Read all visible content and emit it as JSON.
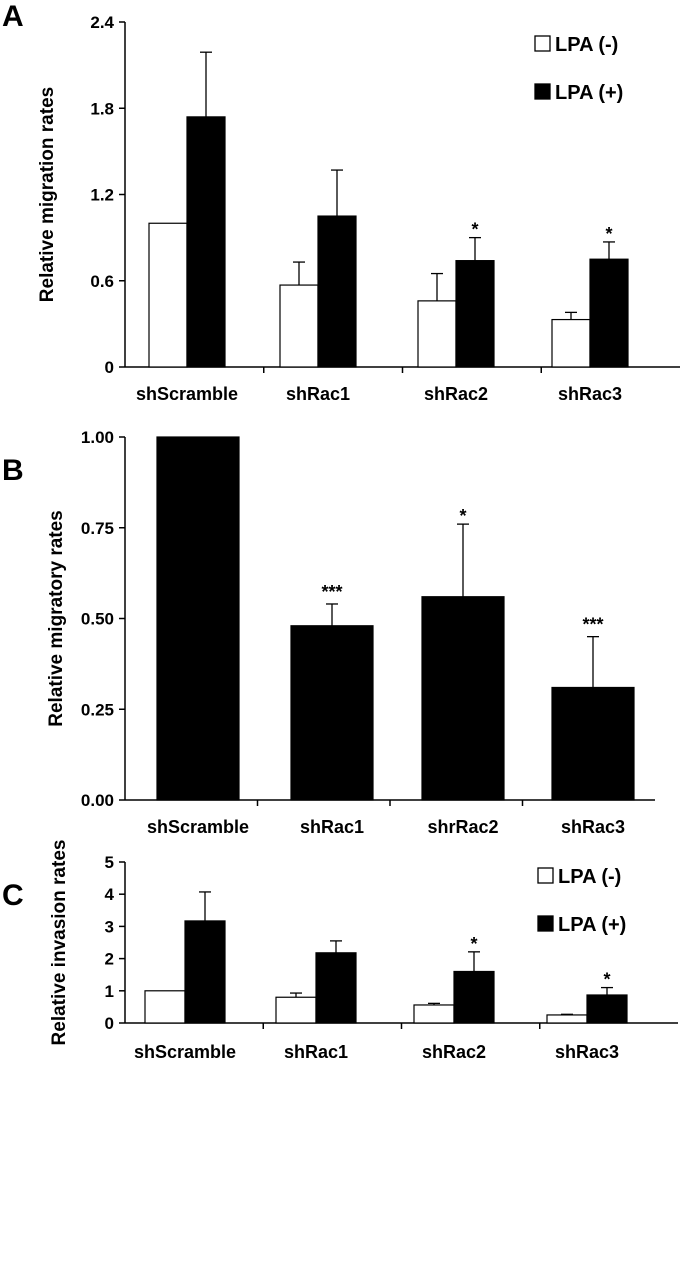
{
  "colors": {
    "lpa_minus_fill": "#ffffff",
    "lpa_plus_fill": "#000000",
    "axis": "#000000"
  },
  "chart_data": [
    {
      "panel_label": "A",
      "type": "bar",
      "ylabel": "Relative migration rates",
      "ylim": [
        0,
        2.4
      ],
      "yticks": [
        "0",
        "0.6",
        "1.2",
        "1.8",
        "2.4"
      ],
      "categories": [
        "shScramble",
        "shRac1",
        "shRac2",
        "shRac3"
      ],
      "legend": {
        "position": "top-right",
        "entries": [
          "LPA (-)",
          "LPA (+)"
        ]
      },
      "series": [
        {
          "name": "LPA (-)",
          "values": [
            1.0,
            0.57,
            0.46,
            0.33
          ],
          "errors": [
            0.0,
            0.16,
            0.19,
            0.05
          ],
          "significance": [
            "",
            "",
            "",
            ""
          ]
        },
        {
          "name": "LPA (+)",
          "values": [
            1.74,
            1.05,
            0.74,
            0.75
          ],
          "errors": [
            0.45,
            0.32,
            0.16,
            0.12
          ],
          "significance": [
            "",
            "",
            "*",
            "*"
          ]
        }
      ]
    },
    {
      "panel_label": "B",
      "type": "bar",
      "ylabel": "Relative migratory rates",
      "ylim": [
        0,
        1.0
      ],
      "yticks": [
        "0.00",
        "0.25",
        "0.50",
        "0.75",
        "1.00"
      ],
      "categories": [
        "shScramble",
        "shRac1",
        "shrRac2",
        "shRac3"
      ],
      "series": [
        {
          "values": [
            1.0,
            0.48,
            0.56,
            0.31
          ],
          "errors": [
            0.0,
            0.06,
            0.2,
            0.14
          ],
          "significance": [
            "",
            "***",
            "*",
            "***"
          ]
        }
      ]
    },
    {
      "panel_label": "C",
      "type": "bar",
      "ylabel": "Relative invasion rates",
      "ylim": [
        0,
        5
      ],
      "yticks": [
        "0",
        "1",
        "2",
        "3",
        "4",
        "5"
      ],
      "categories": [
        "shScramble",
        "shRac1",
        "shRac2",
        "shRac3"
      ],
      "legend": {
        "position": "top-right",
        "entries": [
          "LPA (-)",
          "LPA (+)"
        ]
      },
      "series": [
        {
          "name": "LPA (-)",
          "values": [
            1.0,
            0.8,
            0.56,
            0.25
          ],
          "errors": [
            0.0,
            0.13,
            0.05,
            0.02
          ],
          "significance": [
            "",
            "",
            "",
            ""
          ]
        },
        {
          "name": "LPA (+)",
          "values": [
            3.17,
            2.18,
            1.6,
            0.87
          ],
          "errors": [
            0.9,
            0.37,
            0.61,
            0.23
          ],
          "significance": [
            "",
            "",
            "*",
            "*"
          ]
        }
      ]
    }
  ]
}
